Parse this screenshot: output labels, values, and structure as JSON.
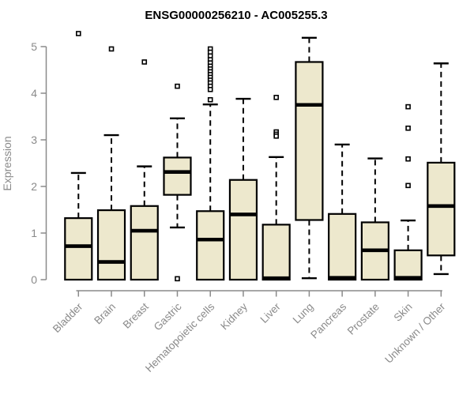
{
  "chart_data": {
    "type": "boxplot",
    "title": "ENSG00000256210 - AC005255.3",
    "ylabel": "Expression",
    "xlabel": "",
    "ylim": [
      0,
      5.35
    ],
    "yticks": [
      0,
      1,
      2,
      3,
      4,
      5
    ],
    "grid": false,
    "legend": "none",
    "categories": [
      "Bladder",
      "Brain",
      "Breast",
      "Gastric",
      "Hematopoietic cells",
      "Kidney",
      "Liver",
      "Lung",
      "Pancreas",
      "Prostate",
      "Skin",
      "Unknown / Other"
    ],
    "series": [
      {
        "name": "Bladder",
        "whisker_low": 0,
        "q1": 0,
        "median": 0.72,
        "q3": 1.32,
        "whisker_high": 2.29,
        "outliers": [
          5.28
        ]
      },
      {
        "name": "Brain",
        "whisker_low": 0,
        "q1": 0,
        "median": 0.38,
        "q3": 1.49,
        "whisker_high": 3.1,
        "outliers": [
          4.95
        ]
      },
      {
        "name": "Breast",
        "whisker_low": 0,
        "q1": 0,
        "median": 1.05,
        "q3": 1.58,
        "whisker_high": 2.43,
        "outliers": [
          4.67
        ]
      },
      {
        "name": "Gastric",
        "whisker_low": 1.12,
        "q1": 1.82,
        "median": 2.31,
        "q3": 2.62,
        "whisker_high": 3.46,
        "outliers": [
          4.15,
          0.02
        ]
      },
      {
        "name": "Hematopoietic cells",
        "whisker_low": 0,
        "q1": 0,
        "median": 0.86,
        "q3": 1.47,
        "whisker_high": 3.76,
        "outliers": [
          4.95,
          4.88,
          4.8,
          4.72,
          4.65,
          4.58,
          4.52,
          4.46,
          4.4,
          4.34,
          4.28,
          4.22,
          4.15,
          4.08,
          3.86
        ]
      },
      {
        "name": "Kidney",
        "whisker_low": 0,
        "q1": 0,
        "median": 1.4,
        "q3": 2.14,
        "whisker_high": 3.88,
        "outliers": []
      },
      {
        "name": "Liver",
        "whisker_low": 0,
        "q1": 0,
        "median": 0.03,
        "q3": 1.18,
        "whisker_high": 2.63,
        "outliers": [
          3.91,
          3.17,
          3.12,
          3.08
        ]
      },
      {
        "name": "Lung",
        "whisker_low": 0.03,
        "q1": 1.28,
        "median": 3.75,
        "q3": 4.67,
        "whisker_high": 5.19,
        "outliers": []
      },
      {
        "name": "Pancreas",
        "whisker_low": 0,
        "q1": 0,
        "median": 0.04,
        "q3": 1.41,
        "whisker_high": 2.9,
        "outliers": []
      },
      {
        "name": "Prostate",
        "whisker_low": 0,
        "q1": 0,
        "median": 0.63,
        "q3": 1.23,
        "whisker_high": 2.6,
        "outliers": []
      },
      {
        "name": "Skin",
        "whisker_low": 0,
        "q1": 0,
        "median": 0.04,
        "q3": 0.63,
        "whisker_high": 1.27,
        "outliers": [
          3.71,
          3.25,
          2.59,
          2.02
        ]
      },
      {
        "name": "Unknown / Other",
        "whisker_low": 0.12,
        "q1": 0.52,
        "median": 1.58,
        "q3": 2.51,
        "whisker_high": 4.64,
        "outliers": []
      }
    ],
    "colors": {
      "box_fill": "#ede8cd",
      "box_border": "#000000",
      "median": "#000000",
      "whisker": "#000000",
      "outlier_stroke": "#000000",
      "outlier_fill": "#ffffff",
      "axis": "#8a8a8a",
      "title": "#000000",
      "background": "#ffffff"
    }
  }
}
